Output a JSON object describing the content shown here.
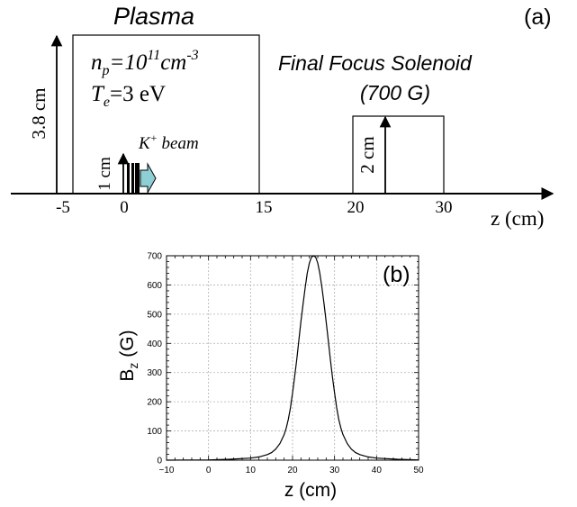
{
  "panel_a": {
    "label": "(a)",
    "plasma_title": "Plasma",
    "density": {
      "prefix": "n",
      "sub": "p",
      "eq": "=10",
      "sup": "11",
      "unit": "cm",
      "unit_sup": "-3"
    },
    "temperature": {
      "prefix": "T",
      "sub": "e",
      "rest": "=3 eV"
    },
    "height_label": "3.8 cm",
    "beam_height_label": "1 cm",
    "beam": {
      "prefix": "K",
      "sup": "+",
      "rest": " beam"
    },
    "solenoid_title": "Final Focus Solenoid",
    "solenoid_field": "(700 G)",
    "solenoid_height_label": "2 cm",
    "axis_label": "z (cm)",
    "ticks": [
      "-5",
      "0",
      "15",
      "20",
      "30"
    ]
  },
  "panel_b": {
    "label": "(b)",
    "colors": {
      "curve": "#000000",
      "grid": "#b0b0b0",
      "frame": "#000000"
    }
  },
  "chart_data": {
    "type": "line",
    "title": "",
    "xlabel": "z (cm)",
    "ylabel": "B_z (G)",
    "xlim": [
      -10,
      50
    ],
    "ylim": [
      0,
      700
    ],
    "xticks": [
      -10,
      0,
      10,
      20,
      30,
      40,
      50
    ],
    "yticks": [
      0,
      100,
      200,
      300,
      400,
      500,
      600,
      700
    ],
    "grid": true,
    "series": [
      {
        "x": [
          -10,
          0,
          5,
          10,
          12,
          14,
          15,
          16,
          17,
          18,
          18.5,
          19,
          19.5,
          20,
          20.5,
          21,
          21.5,
          22,
          22.5,
          23,
          23.5,
          24,
          24.5,
          25,
          25.5,
          26,
          26.5,
          27,
          27.5,
          28,
          28.5,
          29,
          29.5,
          30,
          30.5,
          31,
          31.5,
          32,
          33,
          34,
          35,
          36,
          38,
          40,
          45,
          50
        ],
        "y": [
          0,
          1,
          3,
          7,
          11,
          19,
          26,
          38,
          57,
          88,
          110,
          140,
          180,
          230,
          285,
          345,
          410,
          475,
          535,
          590,
          640,
          675,
          695,
          700,
          695,
          675,
          640,
          590,
          535,
          475,
          410,
          345,
          285,
          230,
          180,
          140,
          110,
          88,
          57,
          38,
          26,
          19,
          11,
          7,
          3,
          1
        ]
      }
    ]
  }
}
